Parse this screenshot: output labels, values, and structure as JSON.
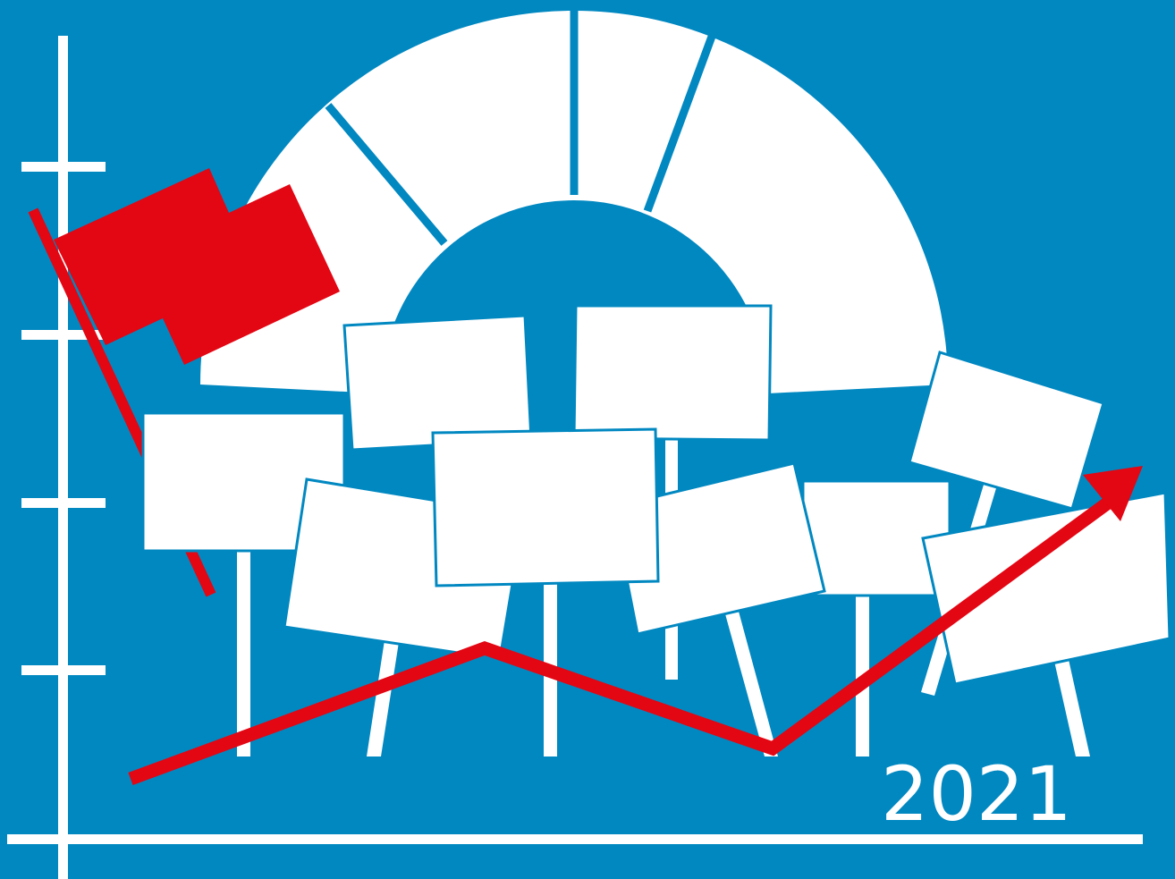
{
  "label": {
    "year": "2021"
  },
  "colors": {
    "background": "#0188c1",
    "foreground": "#ffffff",
    "accent": "#e30613"
  },
  "icons": {
    "flag": "red-flag-icon",
    "arrow": "trend-arrow-icon",
    "signs": "protest-sign-icon"
  }
}
